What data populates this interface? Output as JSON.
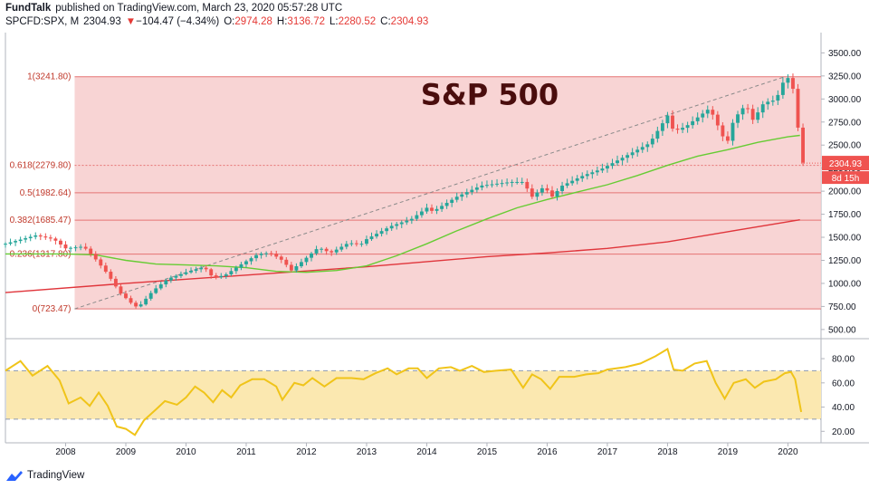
{
  "header": {
    "publisher": "FundTalk",
    "published_text": "published on TradingView.com, March 23, 2020 05:57:28 UTC",
    "symbol": "SPCFD:SPX, M",
    "last": "2304.93",
    "change_arrow": "▼",
    "change": "−104.47 (−4.34%)",
    "o_label": "O:",
    "o_value": "2974.28",
    "h_label": "H:",
    "h_value": "3136.72",
    "l_label": "L:",
    "l_value": "2280.52",
    "c_label": "C:",
    "c_value": "2304.93"
  },
  "footer": {
    "brand": "TradingView"
  },
  "colors": {
    "up": "#26a69a",
    "down": "#ef5350",
    "fib_fill": "#f7cccc",
    "fib_line": "#e57373",
    "sma_short": "#66cc33",
    "sma_long": "#e0353b",
    "rsi_line": "#f0c419",
    "rsi_band": "#fbe8b0",
    "price_label_bg": "#ef5350"
  },
  "chart_data": [
    {
      "type": "candlestick",
      "title": "S&P 500",
      "timeframe": "monthly",
      "x_tick_labels": [
        "2008",
        "2009",
        "2010",
        "2011",
        "2012",
        "2013",
        "2014",
        "2015",
        "2016",
        "2017",
        "2018",
        "2019",
        "2020"
      ],
      "y_tick_labels": [
        "500.00",
        "750.00",
        "1000.00",
        "1250.00",
        "1500.00",
        "1750.00",
        "2000.00",
        "2250.00",
        "2500.00",
        "2750.00",
        "3000.00",
        "3250.00",
        "3500.00"
      ],
      "y_ticks": [
        500,
        750,
        1000,
        1250,
        1500,
        1750,
        2000,
        2250,
        2500,
        2750,
        3000,
        3250,
        3500
      ],
      "ylim": [
        420,
        3720
      ],
      "xlim": [
        2007.0,
        2020.55
      ],
      "last_price_label": "2304.93",
      "countdown_label": "8d 15h",
      "fib_levels": [
        {
          "label": "1(3241.80)",
          "value": 3241.8
        },
        {
          "label": "0.618(2279.80)",
          "value": 2279.8
        },
        {
          "label": "0.5(1982.64)",
          "value": 1982.64
        },
        {
          "label": "0.382(1685.47)",
          "value": 1685.47
        },
        {
          "label": "0.236(1317.80)",
          "value": 1317.8
        },
        {
          "label": "0(723.47)",
          "value": 723.47
        }
      ],
      "fib_range": {
        "x_start": 2008.15,
        "x_end": 2020.55
      },
      "trendline": {
        "x": [
          2008.15,
          2019.95
        ],
        "y": [
          723.47,
          3241.8
        ]
      },
      "anchors": [
        [
          2007.0,
          1430
        ],
        [
          2007.5,
          1520
        ],
        [
          2007.8,
          1480
        ],
        [
          2008.0,
          1380
        ],
        [
          2008.3,
          1400
        ],
        [
          2008.5,
          1260
        ],
        [
          2008.7,
          1100
        ],
        [
          2008.9,
          900
        ],
        [
          2009.1,
          780
        ],
        [
          2009.2,
          735
        ],
        [
          2009.45,
          920
        ],
        [
          2009.7,
          1050
        ],
        [
          2010.0,
          1120
        ],
        [
          2010.3,
          1180
        ],
        [
          2010.45,
          1060
        ],
        [
          2010.65,
          1090
        ],
        [
          2010.9,
          1200
        ],
        [
          2011.2,
          1320
        ],
        [
          2011.4,
          1330
        ],
        [
          2011.6,
          1250
        ],
        [
          2011.75,
          1140
        ],
        [
          2011.95,
          1250
        ],
        [
          2012.2,
          1390
        ],
        [
          2012.4,
          1330
        ],
        [
          2012.7,
          1440
        ],
        [
          2012.9,
          1420
        ],
        [
          2013.0,
          1480
        ],
        [
          2013.4,
          1620
        ],
        [
          2013.75,
          1700
        ],
        [
          2014.0,
          1820
        ],
        [
          2014.1,
          1780
        ],
        [
          2014.5,
          1940
        ],
        [
          2014.9,
          2060
        ],
        [
          2015.4,
          2100
        ],
        [
          2015.6,
          2100
        ],
        [
          2015.75,
          1940
        ],
        [
          2015.95,
          2050
        ],
        [
          2016.08,
          1940
        ],
        [
          2016.25,
          2060
        ],
        [
          2016.6,
          2170
        ],
        [
          2016.9,
          2240
        ],
        [
          2017.3,
          2380
        ],
        [
          2017.7,
          2520
        ],
        [
          2018.0,
          2820
        ],
        [
          2018.1,
          2650
        ],
        [
          2018.3,
          2700
        ],
        [
          2018.7,
          2900
        ],
        [
          2018.9,
          2620
        ],
        [
          2018.98,
          2500
        ],
        [
          2019.1,
          2780
        ],
        [
          2019.3,
          2940
        ],
        [
          2019.42,
          2770
        ],
        [
          2019.6,
          2960
        ],
        [
          2019.8,
          2990
        ],
        [
          2019.95,
          3230
        ],
        [
          2020.05,
          3225
        ],
        [
          2020.13,
          2950
        ],
        [
          2020.22,
          2310
        ]
      ],
      "sma_short": [
        [
          2007.0,
          1320
        ],
        [
          2008.0,
          1320
        ],
        [
          2008.5,
          1310
        ],
        [
          2009.0,
          1250
        ],
        [
          2009.5,
          1210
        ],
        [
          2010.0,
          1200
        ],
        [
          2010.5,
          1190
        ],
        [
          2011.0,
          1170
        ],
        [
          2011.5,
          1130
        ],
        [
          2012.0,
          1120
        ],
        [
          2012.5,
          1140
        ],
        [
          2013.0,
          1190
        ],
        [
          2013.5,
          1300
        ],
        [
          2014.0,
          1430
        ],
        [
          2014.5,
          1570
        ],
        [
          2015.0,
          1700
        ],
        [
          2015.5,
          1820
        ],
        [
          2016.0,
          1910
        ],
        [
          2016.5,
          1990
        ],
        [
          2017.0,
          2070
        ],
        [
          2017.5,
          2170
        ],
        [
          2018.0,
          2280
        ],
        [
          2018.5,
          2380
        ],
        [
          2019.0,
          2450
        ],
        [
          2019.5,
          2530
        ],
        [
          2020.0,
          2590
        ],
        [
          2020.2,
          2605
        ]
      ],
      "sma_long": [
        [
          2007.0,
          900
        ],
        [
          2009.0,
          1000
        ],
        [
          2011.0,
          1090
        ],
        [
          2013.0,
          1180
        ],
        [
          2015.0,
          1290
        ],
        [
          2016.0,
          1330
        ],
        [
          2017.0,
          1380
        ],
        [
          2018.0,
          1450
        ],
        [
          2019.0,
          1560
        ],
        [
          2020.2,
          1690
        ]
      ],
      "rsi": {
        "y_tick_labels": [
          "20.00",
          "40.00",
          "60.00",
          "80.00"
        ],
        "y_ticks": [
          20,
          40,
          60,
          80
        ],
        "ylim": [
          12,
          95
        ],
        "band": [
          30,
          70
        ],
        "points": [
          [
            2007.0,
            70
          ],
          [
            2007.25,
            78
          ],
          [
            2007.45,
            66
          ],
          [
            2007.7,
            74
          ],
          [
            2007.9,
            62
          ],
          [
            2008.05,
            43
          ],
          [
            2008.25,
            48
          ],
          [
            2008.4,
            41
          ],
          [
            2008.55,
            52
          ],
          [
            2008.7,
            41
          ],
          [
            2008.85,
            24
          ],
          [
            2009.0,
            22
          ],
          [
            2009.15,
            17
          ],
          [
            2009.3,
            29
          ],
          [
            2009.5,
            38
          ],
          [
            2009.65,
            45
          ],
          [
            2009.85,
            42
          ],
          [
            2010.0,
            48
          ],
          [
            2010.15,
            57
          ],
          [
            2010.3,
            52
          ],
          [
            2010.45,
            44
          ],
          [
            2010.6,
            54
          ],
          [
            2010.75,
            48
          ],
          [
            2010.9,
            58
          ],
          [
            2011.1,
            63
          ],
          [
            2011.3,
            63
          ],
          [
            2011.5,
            57
          ],
          [
            2011.6,
            46
          ],
          [
            2011.8,
            60
          ],
          [
            2011.95,
            58
          ],
          [
            2012.1,
            64
          ],
          [
            2012.3,
            57
          ],
          [
            2012.5,
            64
          ],
          [
            2012.75,
            64
          ],
          [
            2012.95,
            63
          ],
          [
            2013.15,
            68
          ],
          [
            2013.35,
            72
          ],
          [
            2013.5,
            67
          ],
          [
            2013.7,
            72
          ],
          [
            2013.85,
            72
          ],
          [
            2014.0,
            64
          ],
          [
            2014.2,
            72
          ],
          [
            2014.4,
            73
          ],
          [
            2014.55,
            70
          ],
          [
            2014.75,
            74
          ],
          [
            2014.95,
            69
          ],
          [
            2015.15,
            70
          ],
          [
            2015.4,
            71
          ],
          [
            2015.6,
            56
          ],
          [
            2015.75,
            67
          ],
          [
            2015.9,
            63
          ],
          [
            2016.05,
            55
          ],
          [
            2016.2,
            65
          ],
          [
            2016.45,
            65
          ],
          [
            2016.65,
            67
          ],
          [
            2016.85,
            68
          ],
          [
            2017.0,
            71
          ],
          [
            2017.3,
            73
          ],
          [
            2017.55,
            76
          ],
          [
            2017.8,
            82
          ],
          [
            2018.0,
            88
          ],
          [
            2018.1,
            71
          ],
          [
            2018.25,
            70
          ],
          [
            2018.45,
            76
          ],
          [
            2018.65,
            78
          ],
          [
            2018.8,
            60
          ],
          [
            2018.95,
            47
          ],
          [
            2019.1,
            60
          ],
          [
            2019.3,
            63
          ],
          [
            2019.45,
            56
          ],
          [
            2019.6,
            61
          ],
          [
            2019.8,
            63
          ],
          [
            2019.95,
            68
          ],
          [
            2020.05,
            69
          ],
          [
            2020.12,
            63
          ],
          [
            2020.22,
            36
          ]
        ]
      }
    }
  ]
}
